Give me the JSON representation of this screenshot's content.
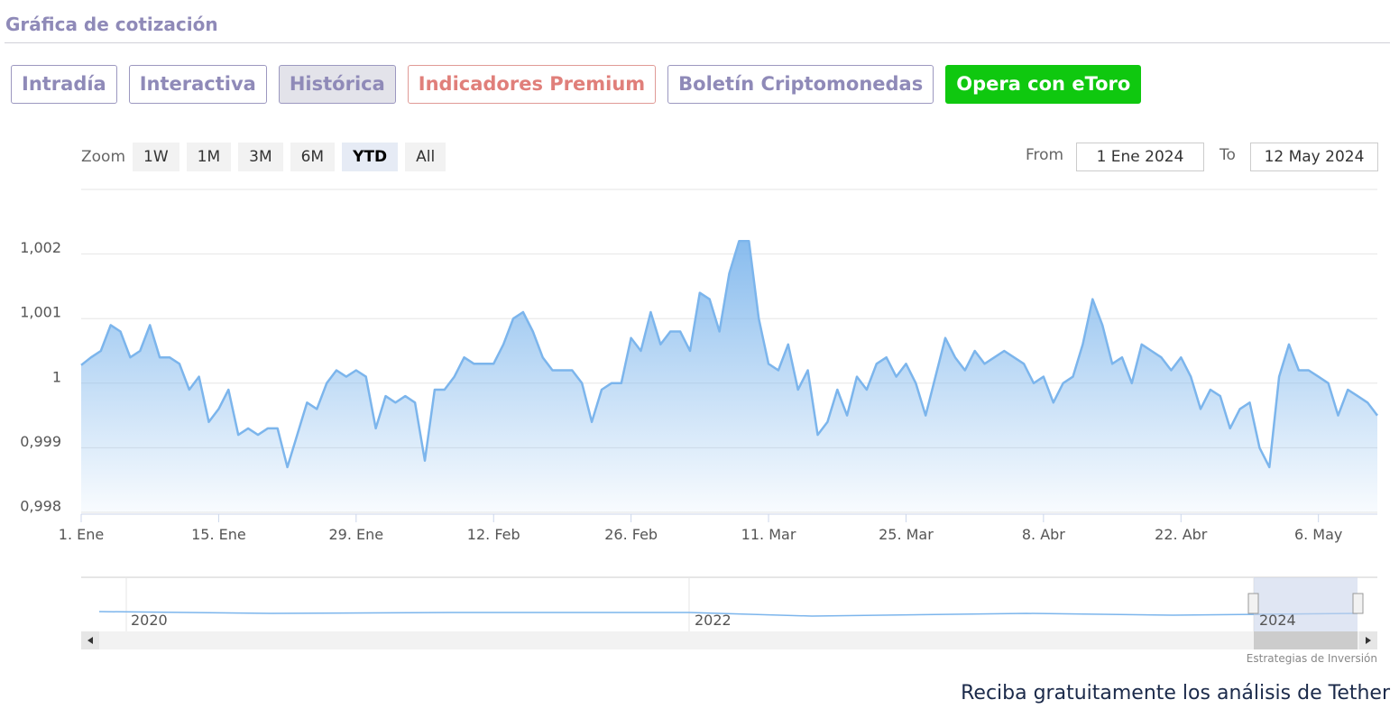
{
  "header": {
    "title": "Gráfica de cotización"
  },
  "tabs": [
    "Intradía",
    "Interactiva",
    "Histórica",
    "Indicadores Premium",
    "Boletín Criptomonedas",
    "Opera con eToro"
  ],
  "zoom": {
    "label": "Zoom",
    "buttons": [
      "1W",
      "1M",
      "3M",
      "6M",
      "YTD",
      "All"
    ]
  },
  "range": {
    "from_label": "From",
    "from": "1 Ene 2024",
    "to_label": "To",
    "to": "12 May 2024"
  },
  "chart_data": {
    "type": "area",
    "color": "#7cb5ec",
    "x": [
      "1. Ene",
      null,
      null,
      null,
      null,
      null,
      null,
      null,
      null,
      null,
      null,
      null,
      null,
      null,
      "15. Ene",
      null,
      null,
      null,
      null,
      null,
      null,
      null,
      null,
      null,
      null,
      null,
      null,
      null,
      "29. Ene",
      null,
      null,
      null,
      null,
      null,
      null,
      null,
      null,
      null,
      null,
      null,
      null,
      null,
      "12. Feb",
      null,
      null,
      null,
      null,
      null,
      null,
      null,
      null,
      null,
      null,
      null,
      null,
      null,
      "26. Feb",
      null,
      null,
      null,
      null,
      null,
      null,
      null,
      null,
      null,
      null,
      null,
      null,
      null,
      "11. Mar",
      null,
      null,
      null,
      null,
      null,
      null,
      null,
      null,
      null,
      null,
      null,
      null,
      null,
      "25. Mar",
      null,
      null,
      null,
      null,
      null,
      null,
      null,
      null,
      null,
      null,
      null,
      null,
      null,
      "8. Abr",
      null,
      null,
      null,
      null,
      null,
      null,
      null,
      null,
      null,
      null,
      null,
      null,
      null,
      "22. Abr",
      null,
      null,
      null,
      null,
      null,
      null,
      null,
      null,
      null,
      null,
      null,
      null,
      null,
      "6. May",
      null,
      null,
      null,
      null,
      null,
      null
    ],
    "values": [
      1.00028,
      1.0004,
      1.0005,
      1.0009,
      1.0008,
      1.0004,
      1.0005,
      1.0009,
      1.0004,
      1.0004,
      1.0003,
      0.9999,
      1.0001,
      0.9994,
      0.9996,
      0.9999,
      0.9992,
      0.9993,
      0.9992,
      0.9993,
      0.9993,
      0.9987,
      0.9992,
      0.9997,
      0.9996,
      1.0,
      1.0002,
      1.0001,
      1.0002,
      1.0001,
      0.9993,
      0.9998,
      0.9997,
      0.9998,
      0.9997,
      0.9988,
      0.9999,
      0.9999,
      1.0001,
      1.0004,
      1.0003,
      1.0003,
      1.0003,
      1.0006,
      1.001,
      1.0011,
      1.0008,
      1.0004,
      1.0002,
      1.0002,
      1.0002,
      1.0,
      0.9994,
      0.9999,
      1.0,
      1.0,
      1.0007,
      1.0005,
      1.0011,
      1.0006,
      1.0008,
      1.0008,
      1.0005,
      1.0014,
      1.0013,
      1.0008,
      1.0017,
      1.0022,
      1.0022,
      1.001,
      1.0003,
      1.0002,
      1.0006,
      0.9999,
      1.0002,
      0.9992,
      0.9994,
      0.9999,
      0.9995,
      1.0001,
      0.9999,
      1.0003,
      1.0004,
      1.0001,
      1.0003,
      1.0,
      0.9995,
      1.0001,
      1.0007,
      1.0004,
      1.0002,
      1.0005,
      1.0003,
      1.0004,
      1.0005,
      1.0004,
      1.0003,
      1.0,
      1.0001,
      0.9997,
      1.0,
      1.0001,
      1.0006,
      1.0013,
      1.0009,
      1.0003,
      1.0004,
      1.0,
      1.0006,
      1.0005,
      1.0004,
      1.0002,
      1.0004,
      1.0001,
      0.9996,
      0.9999,
      0.9998,
      0.9993,
      0.9996,
      0.9997,
      0.999,
      0.9987,
      1.0001,
      1.0006,
      1.0002,
      1.0002,
      1.0001,
      1.0,
      0.9995,
      0.9999,
      0.9998,
      0.9997,
      0.9995
    ],
    "ylim": [
      0.998,
      1.003
    ],
    "yticks": [
      {
        "value": 0.998,
        "label": "0,998"
      },
      {
        "value": 0.999,
        "label": "0,999"
      },
      1,
      {
        "value": 1.001,
        "label": "1,001"
      },
      {
        "value": 1.002,
        "label": "1,002"
      }
    ],
    "grid": true
  },
  "navigator": {
    "labels": [
      "2020",
      "2022",
      "2024"
    ]
  },
  "credit": "Estrategias de Inversión",
  "footer": "Reciba gratuitamente los análisis de Tether"
}
